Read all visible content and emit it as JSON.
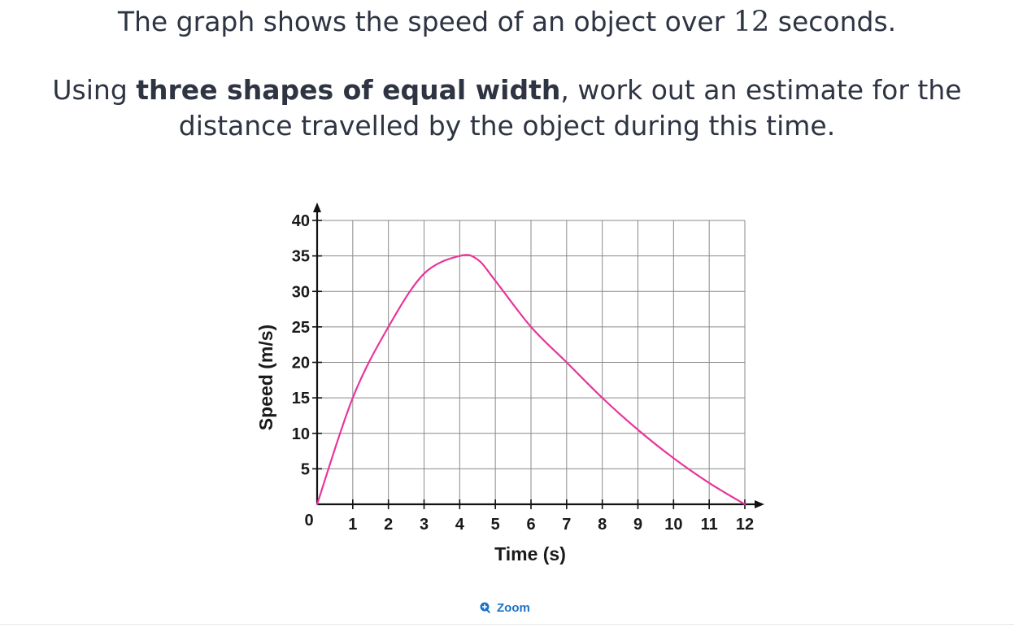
{
  "question": {
    "line1_before": "The graph shows the speed of an object over ",
    "line1_number": "12",
    "line1_after": " seconds.",
    "line2_before": "Using ",
    "line2_bold": "three shapes of equal width",
    "line2_after": ", work out an estimate for the distance travelled by the object during this time."
  },
  "zoom": {
    "label": "Zoom",
    "icon": "zoom-in-icon"
  },
  "chart_data": {
    "type": "line",
    "title": "",
    "xlabel": "Time (s)",
    "ylabel": "Speed (m/s)",
    "xlim": [
      0,
      12
    ],
    "ylim": [
      0,
      40
    ],
    "grid": true,
    "x_ticks": [
      1,
      2,
      3,
      4,
      5,
      6,
      7,
      8,
      9,
      10,
      11,
      12
    ],
    "y_ticks": [
      5,
      10,
      15,
      20,
      25,
      30,
      35,
      40
    ],
    "origin_label": "0",
    "series": [
      {
        "color": "#e8359c",
        "x": [
          0,
          1,
          2,
          3,
          4,
          4.5,
          5,
          6,
          7,
          8,
          9,
          10,
          11,
          12
        ],
        "y": [
          0,
          15,
          25,
          32.5,
          35,
          34.5,
          31.5,
          25,
          20,
          15,
          10.5,
          6.5,
          3,
          0
        ]
      }
    ]
  }
}
